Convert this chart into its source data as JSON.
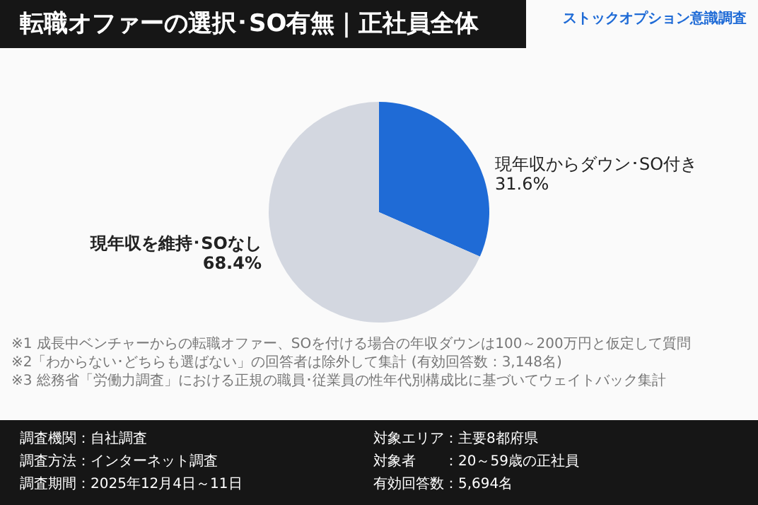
{
  "chart_data": {
    "type": "pie",
    "title": "転職オファーの選択･SO有無｜正社員全体",
    "subtitle": "ストックオプション意識調査",
    "categories": [
      "現年収からダウン･SO付き",
      "現年収を維持･SOなし"
    ],
    "values": [
      31.6,
      68.4
    ],
    "value_labels": [
      "31.6%",
      "68.4%"
    ],
    "colors": [
      "#1f6bd6",
      "#d3d7e0"
    ],
    "annotations": [
      "※1 成長中ベンチャーからの転職オファー、SOを付ける場合の年収ダウンは100～200万円と仮定して質問",
      "※2「わからない･どちらも選ばない」の回答者は除外して集計 (有効回答数：3,148名)",
      "※3 総務省「労働力調査」における正規の職員･従業員の性年代別構成比に基づいてウェイトバック集計",
      "調査機関：自社調査",
      "調査方法：インターネット調査",
      "調査期間：2025年12月4日～11日",
      "対象エリア：主要8都府県",
      "対象者　　：20～59歳の正社員",
      "有効回答数：5,694名"
    ]
  }
}
